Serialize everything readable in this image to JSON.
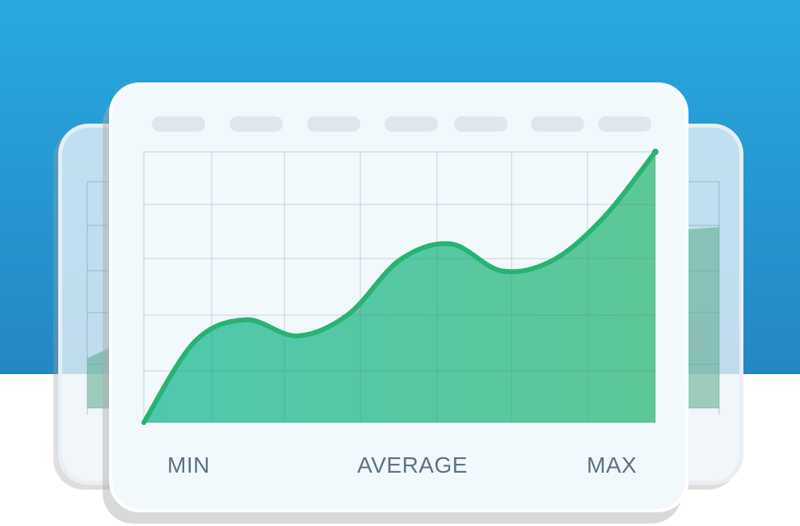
{
  "colors": {
    "sky_top": "#29a8e0",
    "sky_bottom": "#2387c3",
    "line": "#27b373",
    "fill_start": "#4ec8ae",
    "fill_end": "#5dc897",
    "back_fill": "#5aaa8a",
    "label": "#5e7282",
    "placeholder": "#dfe6ee"
  },
  "labels": {
    "min": "MIN",
    "average": "AVERAGE",
    "max": "MAX"
  },
  "chart_data": [
    {
      "type": "area",
      "x": [
        0,
        1,
        2,
        3,
        4,
        5,
        6,
        7,
        8,
        9,
        10
      ],
      "values": [
        0,
        1.5,
        1.9,
        1.6,
        2.0,
        3.0,
        3.3,
        2.8,
        3.0,
        3.8,
        5.0
      ],
      "ylim": [
        0,
        5
      ],
      "grid": true,
      "xlabel": "",
      "ylabel": "",
      "title": ""
    },
    {
      "type": "area",
      "x": [
        0,
        10
      ],
      "values": [
        1.1,
        4.0
      ],
      "ylim": [
        0,
        5
      ],
      "grid": true,
      "title": ""
    }
  ]
}
